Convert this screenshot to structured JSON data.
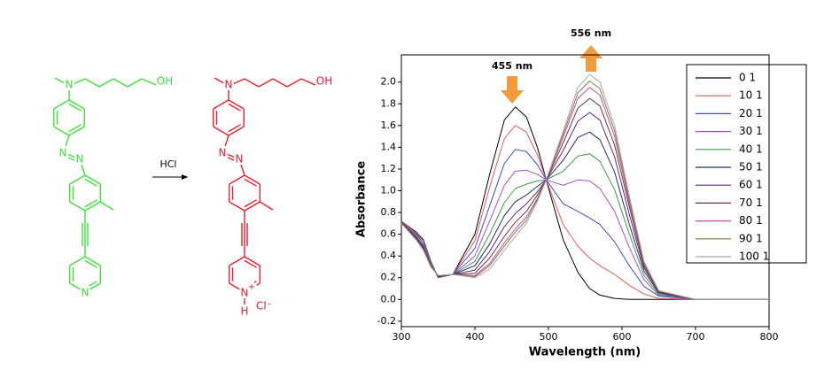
{
  "scheme": {
    "reagent": "HCl",
    "reactant": {
      "amine_n": "N",
      "hydroxyl": "OH",
      "azo_n1": "N",
      "azo_n2": "N",
      "pyridine_n": "N"
    },
    "product": {
      "amine_n": "N",
      "hydroxyl": "OH",
      "azo_n1": "N",
      "azo_n2": "N",
      "pyridine_n": "N",
      "charge": "+",
      "hydrogen": "H",
      "counterion": "Cl⁻"
    }
  },
  "chart_data": {
    "type": "line",
    "x_label": "Wavelength (nm)",
    "y_label": "Absorbance",
    "annotations": [
      {
        "text": "455 nm"
      },
      {
        "text": "556 nm"
      }
    ],
    "xlim": [
      300,
      800
    ],
    "xticks": [
      300,
      400,
      500,
      600,
      700,
      800
    ],
    "ylim": [
      -0.25,
      2.25
    ],
    "yticks": [
      -0.2,
      {
        "value": 0,
        "label": "0.0"
      },
      0.2,
      0.4,
      0.6,
      0.8,
      {
        "value": 1,
        "label": "1.0"
      },
      1.2,
      1.4,
      1.6,
      1.8,
      {
        "value": 2,
        "label": "2.0"
      }
    ],
    "legend": "upper right",
    "x": [
      300,
      320,
      330,
      340,
      350,
      370,
      400,
      420,
      440,
      455,
      470,
      485,
      497,
      520,
      540,
      556,
      570,
      590,
      610,
      630,
      650,
      700,
      800
    ],
    "series": [
      {
        "name": "0 1",
        "color": "#000000",
        "values": [
          0.72,
          0.62,
          0.55,
          0.35,
          0.2,
          0.23,
          0.6,
          1.15,
          1.65,
          1.77,
          1.68,
          1.4,
          1.1,
          0.55,
          0.25,
          0.1,
          0.04,
          0.01,
          0,
          0,
          0,
          0,
          0
        ]
      },
      {
        "name": "10 1",
        "color": "#e05a5a",
        "values": [
          0.72,
          0.61,
          0.54,
          0.34,
          0.2,
          0.23,
          0.54,
          1.03,
          1.48,
          1.6,
          1.54,
          1.33,
          1.1,
          0.69,
          0.49,
          0.38,
          0.31,
          0.23,
          0.13,
          0.05,
          0.01,
          0,
          0
        ]
      },
      {
        "name": "20 1",
        "color": "#4848c8",
        "values": [
          0.71,
          0.6,
          0.52,
          0.33,
          0.21,
          0.23,
          0.47,
          0.86,
          1.25,
          1.38,
          1.36,
          1.24,
          1.1,
          0.88,
          0.81,
          0.75,
          0.69,
          0.53,
          0.31,
          0.12,
          0.03,
          0,
          0
        ]
      },
      {
        "name": "30 1",
        "color": "#a050c8",
        "values": [
          0.71,
          0.59,
          0.5,
          0.33,
          0.21,
          0.23,
          0.4,
          0.72,
          1.05,
          1.18,
          1.19,
          1.15,
          1.1,
          1.05,
          1.1,
          1.09,
          1.02,
          0.81,
          0.48,
          0.18,
          0.04,
          0,
          0
        ]
      },
      {
        "name": "40 1",
        "color": "#3c9a4a",
        "values": [
          0.71,
          0.58,
          0.49,
          0.32,
          0.21,
          0.23,
          0.35,
          0.6,
          0.89,
          1.02,
          1.06,
          1.09,
          1.1,
          1.18,
          1.32,
          1.34,
          1.27,
          1.01,
          0.6,
          0.22,
          0.05,
          0,
          0
        ]
      },
      {
        "name": "50 1",
        "color": "#1e2e5e",
        "values": [
          0.71,
          0.57,
          0.48,
          0.31,
          0.21,
          0.23,
          0.31,
          0.51,
          0.77,
          0.9,
          0.96,
          1.04,
          1.1,
          1.28,
          1.49,
          1.54,
          1.47,
          1.17,
          0.69,
          0.26,
          0.06,
          0,
          0
        ]
      },
      {
        "name": "60 1",
        "color": "#5a2a7a",
        "values": [
          0.7,
          0.56,
          0.47,
          0.31,
          0.22,
          0.23,
          0.27,
          0.44,
          0.67,
          0.79,
          0.88,
          0.99,
          1.1,
          1.37,
          1.64,
          1.72,
          1.65,
          1.31,
          0.78,
          0.29,
          0.07,
          0,
          0
        ]
      },
      {
        "name": "70 1",
        "color": "#6e3434",
        "values": [
          0.7,
          0.56,
          0.46,
          0.31,
          0.22,
          0.23,
          0.24,
          0.38,
          0.58,
          0.71,
          0.81,
          0.96,
          1.1,
          1.44,
          1.76,
          1.85,
          1.78,
          1.42,
          0.85,
          0.31,
          0.07,
          0,
          0
        ]
      },
      {
        "name": "80 1",
        "color": "#c84aa8",
        "values": [
          0.7,
          0.55,
          0.46,
          0.3,
          0.22,
          0.23,
          0.22,
          0.33,
          0.52,
          0.65,
          0.76,
          0.93,
          1.1,
          1.49,
          1.85,
          1.95,
          1.88,
          1.5,
          0.89,
          0.33,
          0.08,
          0,
          0
        ]
      },
      {
        "name": "90 1",
        "color": "#7e7e3e",
        "values": [
          0.7,
          0.55,
          0.45,
          0.3,
          0.22,
          0.23,
          0.21,
          0.31,
          0.49,
          0.62,
          0.73,
          0.92,
          1.1,
          1.52,
          1.9,
          2.01,
          1.94,
          1.55,
          0.92,
          0.34,
          0.08,
          0,
          0
        ]
      },
      {
        "name": "100 1",
        "color": "#a8a8a8",
        "values": [
          0.7,
          0.55,
          0.45,
          0.3,
          0.22,
          0.23,
          0.2,
          0.28,
          0.45,
          0.58,
          0.7,
          0.9,
          1.1,
          1.55,
          1.95,
          2.07,
          2.0,
          1.6,
          0.95,
          0.35,
          0.08,
          0,
          0
        ]
      }
    ]
  }
}
